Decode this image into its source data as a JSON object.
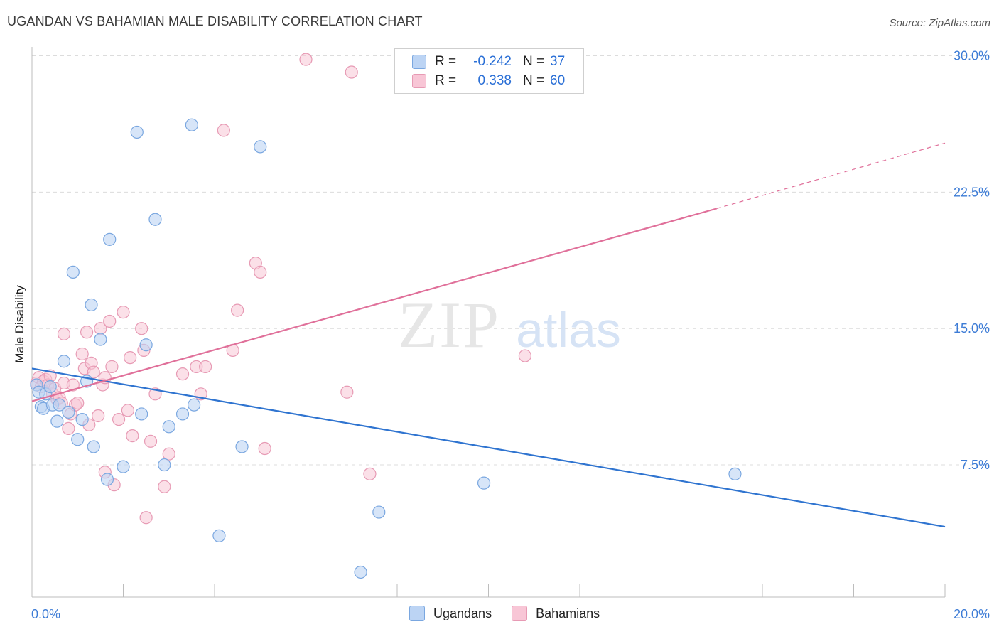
{
  "title": "UGANDAN VS BAHAMIAN MALE DISABILITY CORRELATION CHART",
  "source": "Source: ZipAtlas.com",
  "watermark": {
    "zip": "ZIP",
    "atlas": "atlas"
  },
  "legend": {
    "r_label": "R =",
    "n_label": "N =",
    "rows": [
      {
        "r": "-0.242",
        "n": "37"
      },
      {
        "r": "0.338",
        "n": "60"
      }
    ]
  },
  "colors": {
    "ugandans_fill": "#bcd4f4",
    "ugandans_stroke": "#7aa7e0",
    "ugandans_line": "#2f74d0",
    "bahamians_fill": "#f8c6d6",
    "bahamians_stroke": "#e79ab4",
    "bahamians_line": "#e0709a",
    "axis_text": "#3d7cd6",
    "grid": "#dcdcdc"
  },
  "chart_data": {
    "type": "scatter",
    "title": "UGANDAN VS BAHAMIAN MALE DISABILITY CORRELATION CHART",
    "xlabel": "",
    "ylabel": "Male Disability",
    "xlim": [
      0,
      20
    ],
    "ylim": [
      0.7,
      30.5
    ],
    "x_tick_labels": [
      "0.0%",
      "20.0%"
    ],
    "y_ticks": [
      7.5,
      15.0,
      22.5,
      30.0
    ],
    "y_tick_labels": [
      "7.5%",
      "15.0%",
      "22.5%",
      "30.0%"
    ],
    "grid": true,
    "legend_position": "bottom-center",
    "series": [
      {
        "name": "Ugandans",
        "r": -0.242,
        "n": 37,
        "trend": {
          "x": [
            0,
            20
          ],
          "y": [
            12.8,
            4.1
          ]
        },
        "points": [
          [
            0.1,
            11.9
          ],
          [
            0.15,
            11.5
          ],
          [
            0.2,
            10.7
          ],
          [
            0.25,
            10.6
          ],
          [
            0.3,
            11.4
          ],
          [
            0.4,
            11.8
          ],
          [
            0.45,
            10.8
          ],
          [
            0.55,
            9.9
          ],
          [
            0.6,
            10.8
          ],
          [
            0.7,
            13.2
          ],
          [
            0.8,
            10.4
          ],
          [
            0.9,
            18.1
          ],
          [
            1.0,
            8.9
          ],
          [
            1.1,
            10.0
          ],
          [
            1.2,
            12.1
          ],
          [
            1.3,
            16.3
          ],
          [
            1.35,
            8.5
          ],
          [
            1.5,
            14.4
          ],
          [
            1.7,
            19.9
          ],
          [
            1.65,
            6.7
          ],
          [
            2.0,
            7.4
          ],
          [
            2.3,
            25.8
          ],
          [
            2.4,
            10.3
          ],
          [
            2.5,
            14.1
          ],
          [
            2.7,
            21.0
          ],
          [
            2.9,
            7.5
          ],
          [
            3.0,
            9.6
          ],
          [
            3.3,
            10.3
          ],
          [
            3.5,
            26.2
          ],
          [
            3.55,
            10.8
          ],
          [
            4.1,
            3.6
          ],
          [
            4.6,
            8.5
          ],
          [
            5.0,
            25.0
          ],
          [
            7.2,
            1.6
          ],
          [
            7.6,
            4.9
          ],
          [
            9.9,
            6.5
          ],
          [
            15.4,
            7.0
          ]
        ]
      },
      {
        "name": "Bahamians",
        "r": 0.338,
        "n": 60,
        "trend": {
          "x": [
            0,
            15
          ],
          "y": [
            11.0,
            21.6
          ]
        },
        "trend_dashed": {
          "x": [
            15,
            20
          ],
          "y": [
            21.6,
            25.2
          ]
        },
        "points": [
          [
            0.1,
            12.0
          ],
          [
            0.15,
            12.3
          ],
          [
            0.2,
            11.8
          ],
          [
            0.25,
            12.1
          ],
          [
            0.3,
            12.2
          ],
          [
            0.35,
            11.9
          ],
          [
            0.4,
            12.4
          ],
          [
            0.45,
            11.4
          ],
          [
            0.5,
            11.7
          ],
          [
            0.55,
            11.1
          ],
          [
            0.6,
            11.2
          ],
          [
            0.65,
            10.9
          ],
          [
            0.7,
            12.0
          ],
          [
            0.7,
            14.7
          ],
          [
            0.8,
            9.5
          ],
          [
            0.85,
            10.3
          ],
          [
            0.9,
            11.9
          ],
          [
            0.95,
            10.8
          ],
          [
            1.0,
            10.9
          ],
          [
            1.1,
            13.6
          ],
          [
            1.15,
            12.8
          ],
          [
            1.2,
            14.8
          ],
          [
            1.25,
            9.7
          ],
          [
            1.3,
            13.1
          ],
          [
            1.35,
            12.6
          ],
          [
            1.45,
            10.2
          ],
          [
            1.5,
            15.0
          ],
          [
            1.55,
            11.9
          ],
          [
            1.6,
            12.3
          ],
          [
            1.6,
            7.1
          ],
          [
            1.7,
            15.4
          ],
          [
            1.75,
            12.9
          ],
          [
            1.8,
            6.4
          ],
          [
            1.9,
            10.0
          ],
          [
            2.0,
            15.9
          ],
          [
            2.1,
            10.5
          ],
          [
            2.15,
            13.4
          ],
          [
            2.2,
            9.1
          ],
          [
            2.4,
            15.0
          ],
          [
            2.45,
            13.8
          ],
          [
            2.5,
            4.6
          ],
          [
            2.6,
            8.8
          ],
          [
            2.7,
            11.4
          ],
          [
            2.9,
            6.3
          ],
          [
            3.0,
            8.1
          ],
          [
            3.3,
            12.5
          ],
          [
            3.6,
            12.9
          ],
          [
            3.7,
            11.4
          ],
          [
            3.8,
            12.9
          ],
          [
            4.2,
            25.9
          ],
          [
            4.4,
            13.8
          ],
          [
            4.5,
            16.0
          ],
          [
            4.9,
            18.6
          ],
          [
            5.0,
            18.1
          ],
          [
            5.1,
            8.4
          ],
          [
            6.0,
            29.8
          ],
          [
            6.9,
            11.5
          ],
          [
            7.0,
            29.1
          ],
          [
            7.4,
            7.0
          ],
          [
            10.8,
            13.5
          ]
        ]
      }
    ]
  }
}
